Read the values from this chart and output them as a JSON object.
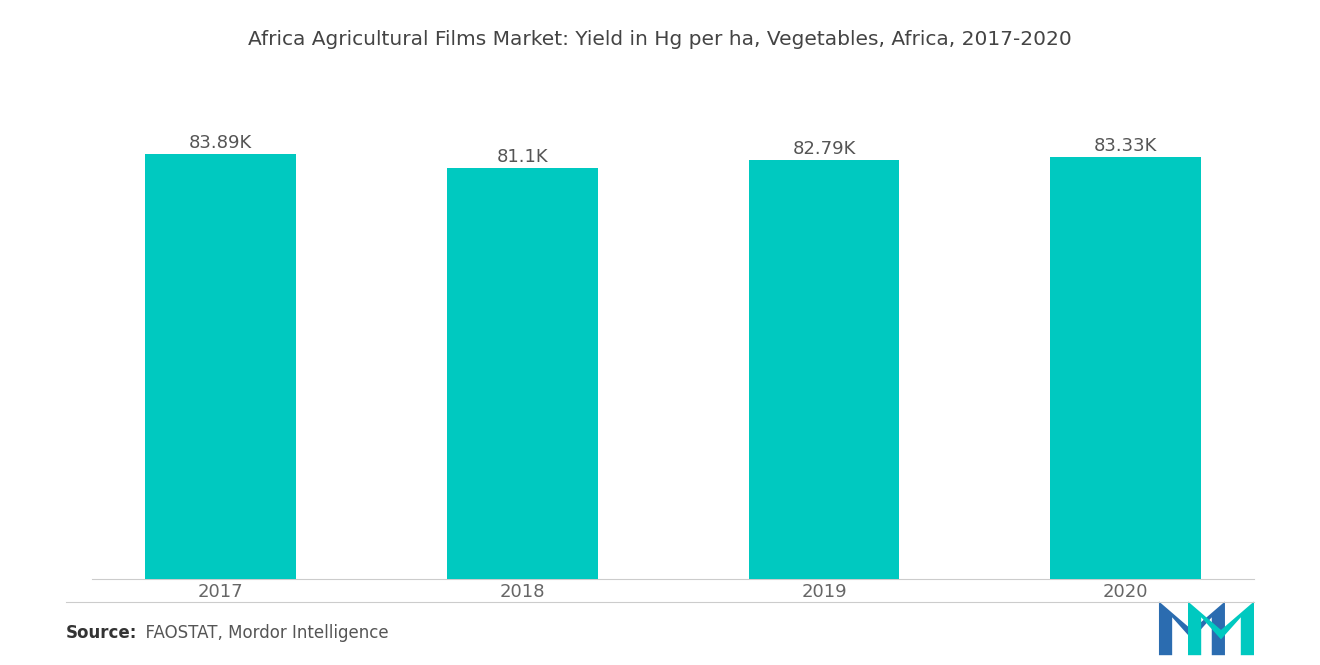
{
  "title": "Africa Agricultural Films Market: Yield in Hg per ha, Vegetables, Africa, 2017-2020",
  "categories": [
    "2017",
    "2018",
    "2019",
    "2020"
  ],
  "values": [
    83890,
    81100,
    82790,
    83330
  ],
  "labels": [
    "83.89K",
    "81.1K",
    "82.79K",
    "83.33K"
  ],
  "bar_color": "#00C9C0",
  "background_color": "#ffffff",
  "ylim_min": 0,
  "ylim_max": 92000,
  "source_bold": "Source:",
  "source_rest": "  FAOSTAT, Mordor Intelligence",
  "title_fontsize": 14.5,
  "label_fontsize": 13,
  "tick_fontsize": 13,
  "source_fontsize": 12,
  "bar_width": 0.5,
  "logo_blue": "#2B6CB0",
  "logo_teal": "#00C9C0"
}
